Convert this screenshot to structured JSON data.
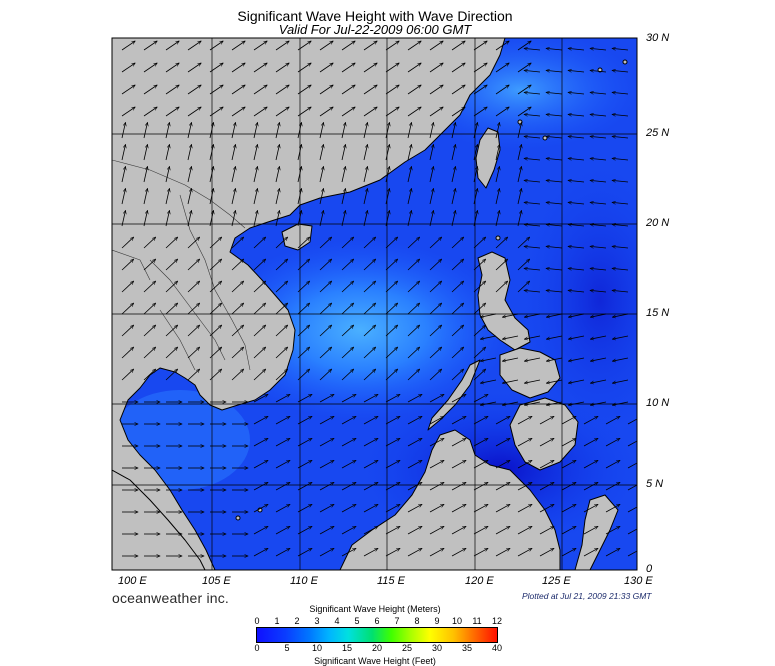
{
  "header": {
    "title": "Significant Wave Height with Wave Direction",
    "subtitle": "Valid For Jul-22-2009 06:00 GMT"
  },
  "axes": {
    "latitudes": [
      "30 N",
      "25 N",
      "20 N",
      "15 N",
      "10 N",
      "5 N",
      "0"
    ],
    "longitudes": [
      "100 E",
      "105 E",
      "110 E",
      "115 E",
      "120 E",
      "125 E",
      "130 E"
    ]
  },
  "footer": {
    "brand": "oceanweather inc.",
    "plotted": "Plotted at Jul 21, 2009 21:33 GMT"
  },
  "legend": {
    "meters_title": "Significant Wave Height (Meters)",
    "meters_ticks": [
      "0",
      "1",
      "2",
      "3",
      "4",
      "5",
      "6",
      "7",
      "8",
      "9",
      "10",
      "11",
      "12"
    ],
    "feet_title": "Significant Wave Height (Feet)",
    "feet_ticks": [
      "0",
      "5",
      "10",
      "15",
      "20",
      "25",
      "30",
      "35",
      "40"
    ]
  },
  "colors": {
    "land": "#c0c0c0",
    "sea_low": "#0a1ad8",
    "sea_mid": "#1c5cff",
    "sea_high": "#3aa0ff"
  }
}
